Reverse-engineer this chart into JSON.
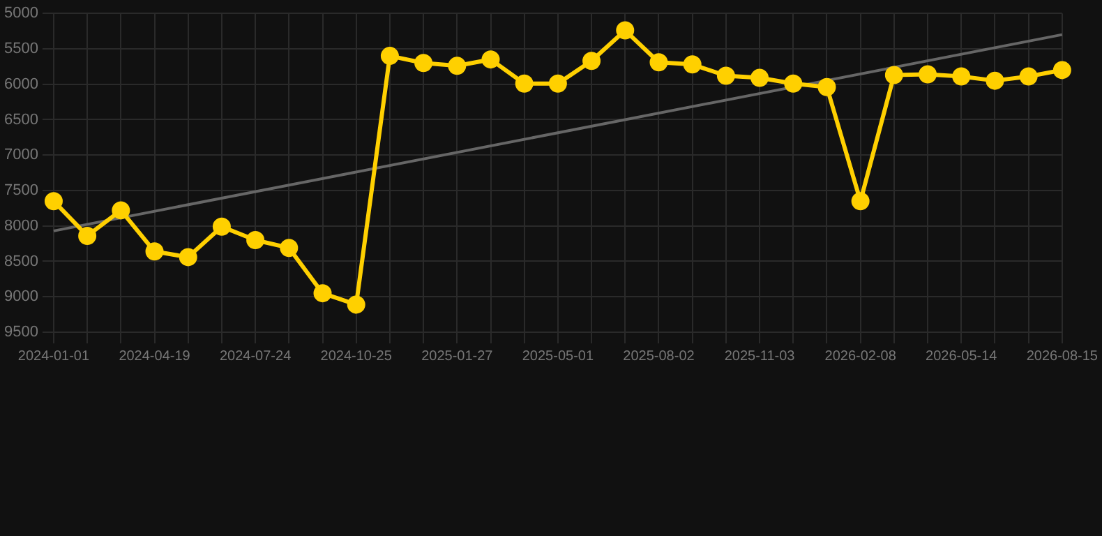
{
  "chart_data": {
    "type": "line",
    "categories": [
      "2024-01-01",
      null,
      null,
      "2024-04-19",
      null,
      null,
      "2024-07-24",
      null,
      null,
      "2024-10-25",
      null,
      null,
      "2025-01-27",
      null,
      null,
      "2025-05-01",
      null,
      null,
      "2025-08-02",
      null,
      null,
      "2025-11-03",
      null,
      null,
      "2026-02-08",
      null,
      null,
      "2026-05-14",
      null,
      null,
      "2026-08-15"
    ],
    "series": [
      {
        "color": "#ffd000",
        "marker": "circle",
        "values": [
          7650,
          8140,
          7780,
          8360,
          8440,
          8010,
          8200,
          8310,
          8950,
          9110,
          5600,
          5700,
          5740,
          5650,
          5990,
          5990,
          5670,
          5240,
          5690,
          5720,
          5880,
          5910,
          5990,
          6040,
          7650,
          5870,
          5860,
          5890,
          5950,
          5890,
          5800
        ]
      },
      {
        "color": "#666666",
        "marker": "none",
        "values": [
          8070,
          null,
          null,
          null,
          null,
          null,
          null,
          null,
          null,
          null,
          null,
          null,
          null,
          null,
          null,
          null,
          null,
          null,
          null,
          null,
          null,
          null,
          null,
          null,
          null,
          null,
          null,
          null,
          null,
          null,
          5300
        ]
      }
    ],
    "ylim": [
      9500,
      5000
    ],
    "yticks": [
      5000,
      5500,
      6000,
      6500,
      7000,
      7500,
      8000,
      8500,
      9000,
      9500
    ],
    "grid": true,
    "legend": false
  }
}
